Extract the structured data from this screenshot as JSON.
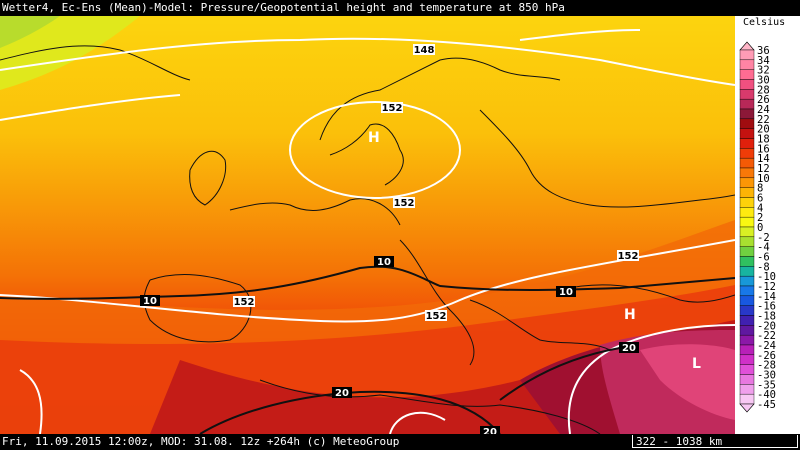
{
  "header": {
    "title": "Wetter4, Ec-Ens (Mean)-Model: Pressure/Geopotential height and temperature at 850 hPa"
  },
  "footer": {
    "run_info": "Fri, 11.09.2015 12:00z, MOD: 31.08. 12z +264h (c) MeteoGroup",
    "scale": "322 - 1038 km"
  },
  "legend": {
    "unit": "Celsius",
    "levels": [
      "36",
      "34",
      "32",
      "30",
      "28",
      "26",
      "24",
      "22",
      "20",
      "18",
      "16",
      "14",
      "12",
      "10",
      "8",
      "6",
      "4",
      "2",
      "0",
      "-2",
      "-4",
      "-6",
      "-8",
      "-10",
      "-12",
      "-14",
      "-16",
      "-18",
      "-20",
      "-22",
      "-24",
      "-26",
      "-28",
      "-30",
      "-35",
      "-40",
      "-45"
    ],
    "colors": [
      "#ffb6c8",
      "#ff9cb6",
      "#ff84a4",
      "#ff6c92",
      "#f05080",
      "#d83a6c",
      "#b82858",
      "#8c1838",
      "#a00c10",
      "#c41210",
      "#e0200c",
      "#ef3c08",
      "#f45a06",
      "#f87808",
      "#fb9606",
      "#fcb406",
      "#fdd20a",
      "#feea10",
      "#f8f812",
      "#d8f024",
      "#a8e030",
      "#70d040",
      "#30c060",
      "#18b4a0",
      "#1898d8",
      "#1878e8",
      "#1858e0",
      "#2838c8",
      "#4020b0",
      "#6018a0",
      "#8c18a8",
      "#b820b8",
      "#d030c8",
      "#e050d8",
      "#e878e0",
      "#f0a0ec",
      "#f8c8f4"
    ]
  },
  "map": {
    "isohypse_labels": [
      "148",
      "152",
      "152",
      "152",
      "152",
      "152"
    ],
    "isotherm_labels": [
      "10",
      "10",
      "10",
      "20",
      "20",
      "20"
    ],
    "pressure_centers": [
      "H",
      "H",
      "L"
    ]
  }
}
